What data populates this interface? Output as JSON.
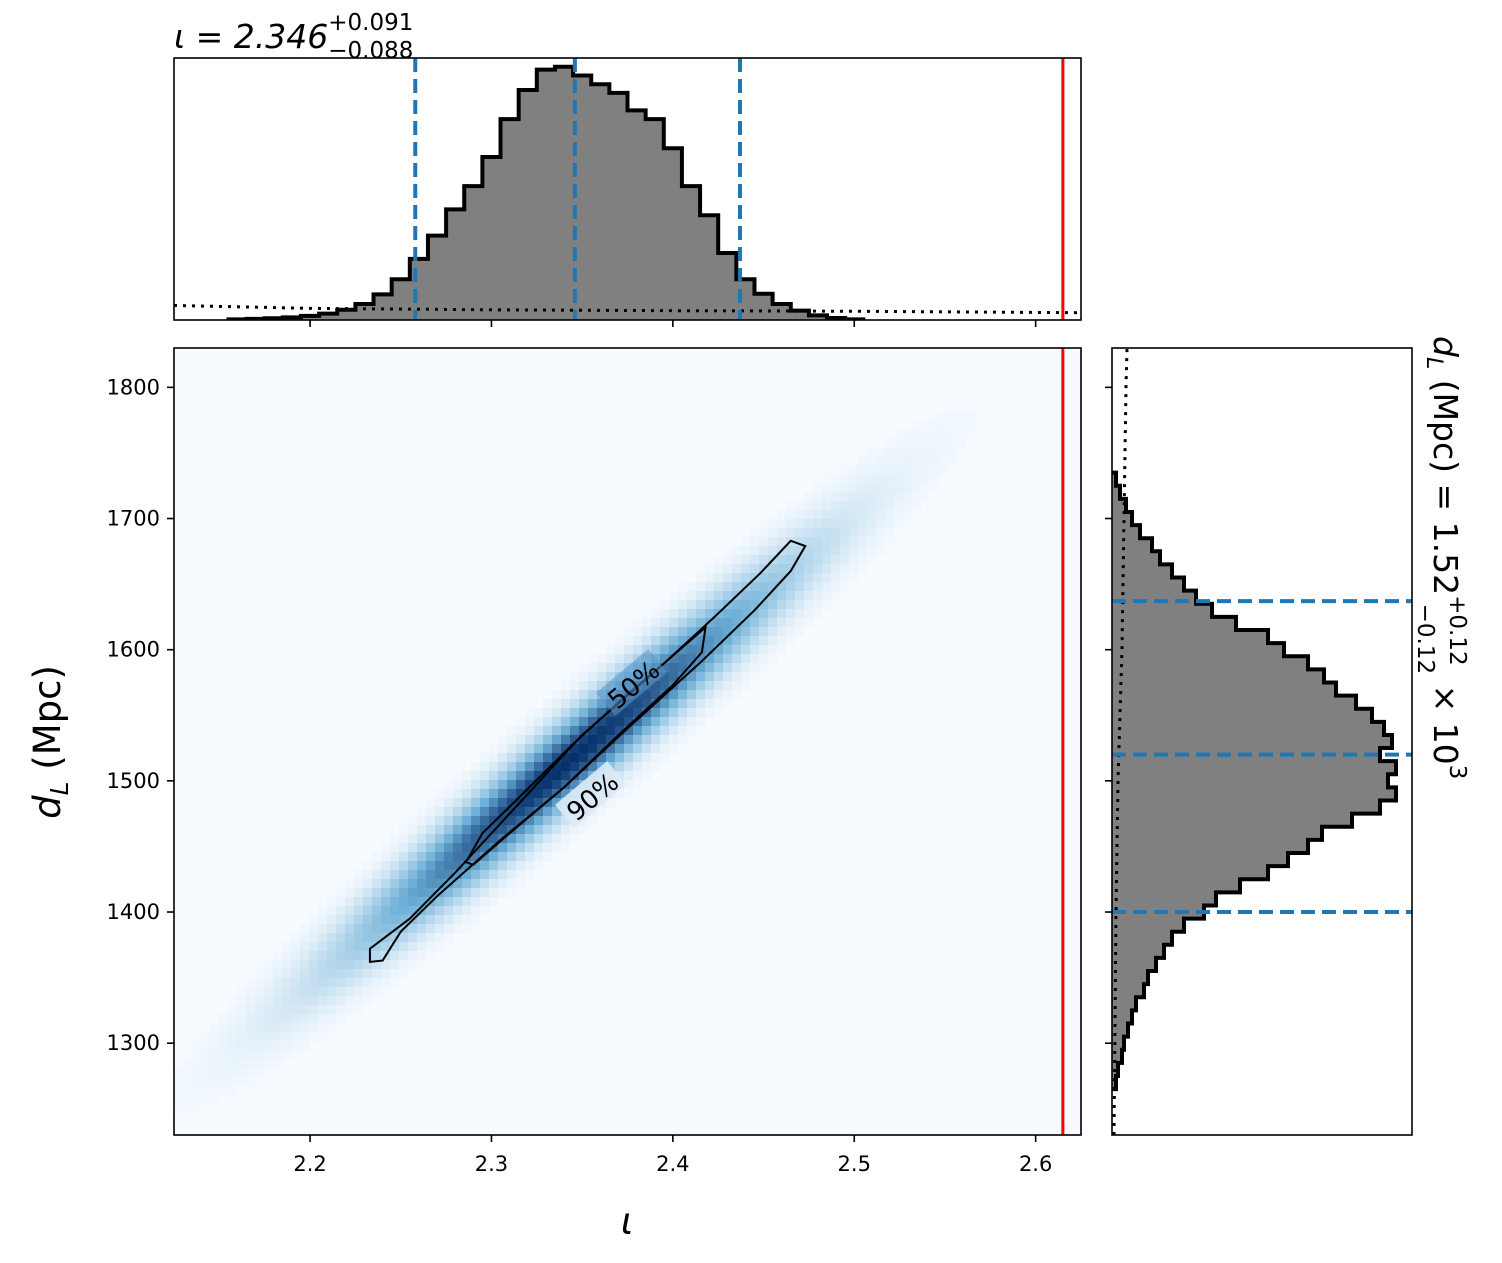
{
  "chart_data": [
    {
      "type": "histogram",
      "panel": "top-marginal",
      "title_main": "ι = 2.346",
      "title_sup": "+0.091",
      "title_sub": "−0.088",
      "xlim": [
        2.125,
        2.625
      ],
      "xticks": [
        2.2,
        2.3,
        2.4,
        2.5,
        2.6
      ],
      "bins": {
        "x": [
          2.16,
          2.17,
          2.18,
          2.19,
          2.2,
          2.21,
          2.22,
          2.23,
          2.24,
          2.25,
          2.26,
          2.27,
          2.28,
          2.29,
          2.3,
          2.31,
          2.32,
          2.33,
          2.34,
          2.35,
          2.36,
          2.37,
          2.38,
          2.39,
          2.4,
          2.41,
          2.42,
          2.43,
          2.44,
          2.45,
          2.46,
          2.47,
          2.48,
          2.49,
          2.5
        ],
        "values": [
          0.002,
          0.004,
          0.006,
          0.009,
          0.014,
          0.022,
          0.035,
          0.055,
          0.088,
          0.14,
          0.21,
          0.29,
          0.38,
          0.46,
          0.56,
          0.69,
          0.79,
          0.86,
          0.87,
          0.84,
          0.81,
          0.78,
          0.72,
          0.69,
          0.59,
          0.46,
          0.36,
          0.23,
          0.14,
          0.09,
          0.055,
          0.032,
          0.016,
          0.007,
          0.002
        ]
      },
      "prior_dotted": [
        [
          2.125,
          0.05
        ],
        [
          2.2,
          0.04
        ],
        [
          2.3,
          0.035
        ],
        [
          2.4,
          0.032
        ],
        [
          2.5,
          0.03
        ],
        [
          2.625,
          0.025
        ]
      ],
      "quantile_lines": [
        2.258,
        2.346,
        2.437
      ],
      "true_value": 2.615
    },
    {
      "type": "heatmap",
      "panel": "joint",
      "xlabel": "ι",
      "ylabel_main": "d",
      "ylabel_sub": "L",
      "ylabel_unit": " (Mpc)",
      "xlim": [
        2.125,
        2.625
      ],
      "ylim": [
        1230,
        1830
      ],
      "xticks": [
        2.2,
        2.3,
        2.4,
        2.5,
        2.6
      ],
      "yticks": [
        1300,
        1400,
        1500,
        1600,
        1700,
        1800
      ],
      "density": {
        "mean": [
          2.343,
          1515
        ],
        "sd_major": 0.19,
        "sd_minor": 0.0155,
        "major_axis_slope": 0.868
      },
      "contour_labels": [
        "50%",
        "90%"
      ],
      "contour_90": [
        [
          2.233,
          1362
        ],
        [
          2.233,
          1372
        ],
        [
          2.255,
          1395
        ],
        [
          2.28,
          1430
        ],
        [
          2.31,
          1475
        ],
        [
          2.35,
          1535
        ],
        [
          2.39,
          1583
        ],
        [
          2.423,
          1625
        ],
        [
          2.448,
          1658
        ],
        [
          2.465,
          1683
        ],
        [
          2.473,
          1679
        ],
        [
          2.465,
          1660
        ],
        [
          2.445,
          1630
        ],
        [
          2.415,
          1590
        ],
        [
          2.375,
          1540
        ],
        [
          2.34,
          1495
        ],
        [
          2.305,
          1455
        ],
        [
          2.27,
          1412
        ],
        [
          2.25,
          1385
        ],
        [
          2.24,
          1363
        ]
      ],
      "contour_50": [
        [
          2.286,
          1438
        ],
        [
          2.295,
          1460
        ],
        [
          2.315,
          1487
        ],
        [
          2.345,
          1528
        ],
        [
          2.375,
          1566
        ],
        [
          2.398,
          1593
        ],
        [
          2.418,
          1617
        ],
        [
          2.416,
          1598
        ],
        [
          2.4,
          1573
        ],
        [
          2.37,
          1535
        ],
        [
          2.34,
          1495
        ],
        [
          2.31,
          1460
        ],
        [
          2.29,
          1436
        ]
      ],
      "true_value_x": 2.615
    },
    {
      "type": "histogram",
      "panel": "right-marginal",
      "orientation": "horizontal",
      "title_main": "d",
      "title_sub_label": "L",
      "title_rest": " (Mpc) = 1.52",
      "title_sup": "+0.12",
      "title_sub": "−0.12",
      "title_tail": " × 10",
      "title_exp": "3",
      "ylim": [
        1230,
        1830
      ],
      "bins": {
        "y": [
          1270,
          1280,
          1290,
          1300,
          1310,
          1320,
          1330,
          1340,
          1350,
          1360,
          1370,
          1380,
          1390,
          1400,
          1410,
          1420,
          1430,
          1440,
          1450,
          1460,
          1470,
          1480,
          1490,
          1500,
          1510,
          1520,
          1530,
          1540,
          1550,
          1560,
          1570,
          1580,
          1590,
          1600,
          1610,
          1620,
          1630,
          1640,
          1650,
          1660,
          1670,
          1680,
          1690,
          1700,
          1710,
          1720,
          1730
        ],
        "values": [
          0.02,
          0.03,
          0.05,
          0.06,
          0.08,
          0.1,
          0.12,
          0.16,
          0.18,
          0.22,
          0.26,
          0.3,
          0.36,
          0.46,
          0.52,
          0.64,
          0.78,
          0.88,
          0.98,
          1.05,
          1.2,
          1.34,
          1.42,
          1.38,
          1.42,
          1.34,
          1.4,
          1.36,
          1.3,
          1.22,
          1.12,
          1.06,
          0.98,
          0.86,
          0.78,
          0.62,
          0.5,
          0.42,
          0.36,
          0.3,
          0.24,
          0.2,
          0.14,
          0.1,
          0.07,
          0.04,
          0.02
        ]
      },
      "prior_dotted": [
        [
          1230,
          0.01
        ],
        [
          1400,
          0.02
        ],
        [
          1500,
          0.03
        ],
        [
          1600,
          0.05
        ],
        [
          1700,
          0.06
        ],
        [
          1800,
          0.07
        ],
        [
          1830,
          0.075
        ]
      ],
      "quantile_lines": [
        1400,
        1520,
        1637
      ]
    }
  ],
  "colors": {
    "hist_fill": "#808080",
    "hist_edge": "#000000",
    "quantile": "#1f77b4",
    "true_value": "#ff0000",
    "heat_low": "#f7fbff",
    "heat_high": "#08306b"
  }
}
